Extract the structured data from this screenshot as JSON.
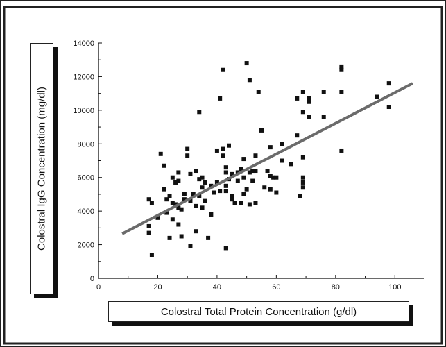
{
  "chart_data": {
    "type": "scatter",
    "title": "",
    "xlabel": "Colostral Total Protein Concentration (g/dl)",
    "ylabel": "Colostral IgG Concentration (mg/dl)",
    "xlim": [
      0,
      110
    ],
    "ylim": [
      0,
      14000
    ],
    "x_ticks": [
      "0",
      "20",
      "40",
      "60",
      "80",
      "100"
    ],
    "y_ticks": [
      "0",
      "2000",
      "4000",
      "6000",
      "8000",
      "10000",
      "12000",
      "14000"
    ],
    "grid": false,
    "legend": "none",
    "colors": {
      "points": "#111111",
      "trendline": "#6b6b6b",
      "frame": "#222222"
    },
    "points": [
      [
        17,
        4700
      ],
      [
        17,
        3100
      ],
      [
        17,
        2700
      ],
      [
        18,
        1400
      ],
      [
        18,
        4500
      ],
      [
        20,
        3600
      ],
      [
        21,
        7400
      ],
      [
        22,
        6700
      ],
      [
        22,
        5300
      ],
      [
        23,
        4700
      ],
      [
        23,
        3900
      ],
      [
        24,
        4900
      ],
      [
        24,
        2400
      ],
      [
        25,
        6000
      ],
      [
        25,
        4500
      ],
      [
        25,
        3500
      ],
      [
        26,
        5700
      ],
      [
        26,
        4400
      ],
      [
        27,
        6300
      ],
      [
        27,
        5800
      ],
      [
        27,
        4200
      ],
      [
        27,
        3200
      ],
      [
        28,
        2500
      ],
      [
        28,
        4100
      ],
      [
        29,
        5000
      ],
      [
        29,
        4700
      ],
      [
        30,
        7700
      ],
      [
        30,
        7300
      ],
      [
        31,
        6200
      ],
      [
        31,
        4600
      ],
      [
        31,
        1900
      ],
      [
        32,
        5000
      ],
      [
        33,
        6400
      ],
      [
        33,
        4300
      ],
      [
        33,
        2800
      ],
      [
        34,
        9900
      ],
      [
        34,
        5900
      ],
      [
        34,
        4900
      ],
      [
        35,
        6000
      ],
      [
        35,
        5400
      ],
      [
        35,
        4200
      ],
      [
        36,
        5700
      ],
      [
        36,
        4600
      ],
      [
        37,
        2400
      ],
      [
        38,
        5500
      ],
      [
        38,
        3800
      ],
      [
        39,
        5100
      ],
      [
        40,
        7600
      ],
      [
        40,
        5700
      ],
      [
        41,
        10700
      ],
      [
        41,
        5200
      ],
      [
        42,
        12400
      ],
      [
        42,
        7700
      ],
      [
        42,
        7300
      ],
      [
        43,
        6600
      ],
      [
        43,
        6300
      ],
      [
        43,
        5500
      ],
      [
        43,
        5200
      ],
      [
        43,
        1800
      ],
      [
        44,
        7900
      ],
      [
        44,
        5900
      ],
      [
        45,
        6200
      ],
      [
        45,
        4900
      ],
      [
        45,
        4700
      ],
      [
        46,
        4500
      ],
      [
        47,
        6300
      ],
      [
        47,
        5800
      ],
      [
        48,
        6500
      ],
      [
        48,
        4500
      ],
      [
        49,
        7100
      ],
      [
        49,
        6000
      ],
      [
        49,
        5000
      ],
      [
        50,
        12800
      ],
      [
        50,
        5300
      ],
      [
        51,
        11800
      ],
      [
        51,
        6300
      ],
      [
        51,
        4400
      ],
      [
        52,
        6400
      ],
      [
        52,
        5800
      ],
      [
        53,
        7300
      ],
      [
        53,
        6400
      ],
      [
        53,
        4500
      ],
      [
        54,
        11100
      ],
      [
        55,
        8800
      ],
      [
        56,
        5400
      ],
      [
        57,
        6400
      ],
      [
        58,
        7800
      ],
      [
        58,
        6100
      ],
      [
        58,
        5300
      ],
      [
        59,
        6000
      ],
      [
        60,
        6000
      ],
      [
        60,
        5100
      ],
      [
        62,
        8000
      ],
      [
        62,
        7000
      ],
      [
        65,
        6800
      ],
      [
        67,
        10700
      ],
      [
        67,
        8500
      ],
      [
        68,
        4900
      ],
      [
        69,
        11100
      ],
      [
        69,
        9900
      ],
      [
        69,
        7200
      ],
      [
        69,
        6000
      ],
      [
        69,
        5700
      ],
      [
        69,
        5400
      ],
      [
        71,
        10700
      ],
      [
        71,
        10500
      ],
      [
        71,
        9600
      ],
      [
        76,
        11100
      ],
      [
        76,
        9600
      ],
      [
        82,
        12600
      ],
      [
        82,
        12400
      ],
      [
        82,
        11100
      ],
      [
        82,
        7600
      ],
      [
        94,
        10800
      ],
      [
        98,
        11600
      ],
      [
        98,
        10200
      ]
    ],
    "trendline": {
      "x": [
        8,
        106
      ],
      "y": [
        2650,
        11600
      ]
    }
  }
}
